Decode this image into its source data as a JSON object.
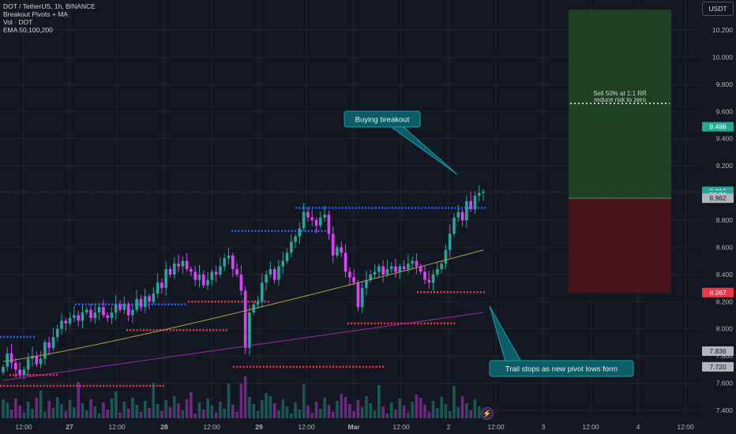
{
  "legend": {
    "symbol": "DOT / TetherUS, 1h, BINANCE",
    "indicators": [
      "Breakout Pivots + MA",
      "Vol · DOT",
      "EMA 50,100,200"
    ]
  },
  "currency_label": "USDT",
  "price_axis": {
    "ticks": [
      "7.400",
      "7.600",
      "7.800",
      "8.000",
      "8.200",
      "8.400",
      "8.600",
      "8.800",
      "9.000",
      "9.200",
      "9.400",
      "9.600",
      "9.800",
      "10.000",
      "10.200"
    ],
    "badges": [
      {
        "text": "9.488",
        "value": 9.488,
        "color": "#22ab94"
      },
      {
        "text": "9.012",
        "value": 9.012,
        "color": "#26a69a"
      },
      {
        "text": "58:29",
        "value": 8.985,
        "color": "#26a69a"
      },
      {
        "text": "8.962",
        "value": 8.962,
        "color": "#b2b5be"
      },
      {
        "text": "8.267",
        "value": 8.267,
        "color": "#f23645"
      },
      {
        "text": "7.836",
        "value": 7.836,
        "color": "#b2b5be"
      },
      {
        "text": "7.720",
        "value": 7.72,
        "color": "#b2b5be"
      }
    ]
  },
  "time_axis": [
    "12:00",
    "27",
    "12:00",
    "28",
    "12:00",
    "29",
    "12:00",
    "Mar",
    "12:00",
    "2",
    "12:00",
    "3",
    "12:00",
    "4",
    "12:00"
  ],
  "annotations": {
    "buy": "Buying breakout",
    "sell_line1": "Sell 50% at 1:1 RR",
    "sell_line2": "reduce risk to zero",
    "trail": "Trail stops as new pivot lows form"
  },
  "colors": {
    "bg": "#131722",
    "up": "#26a69a",
    "down": "#e040fb",
    "callout": "#0b5c66",
    "callout_border": "#12a2b0",
    "pivot_high": "#2962ff",
    "pivot_low": "#f23645",
    "ema50": "#b79a4a",
    "ema200": "#9c27b0"
  },
  "chart_data": {
    "type": "candlestick",
    "title": "DOT / TetherUS, 1h, BINANCE",
    "symbol": "DOTUSDT",
    "timeframe": "1h",
    "exchange": "BINANCE",
    "ylim": [
      7.35,
      10.35
    ],
    "x_labels": [
      "12:00",
      "27",
      "12:00",
      "28",
      "12:00",
      "29",
      "12:00",
      "Mar",
      "12:00",
      "2",
      "12:00",
      "3",
      "12:00",
      "4",
      "12:00"
    ],
    "closes": [
      7.72,
      7.82,
      7.75,
      7.7,
      7.66,
      7.7,
      7.78,
      7.8,
      7.74,
      7.78,
      7.9,
      7.86,
      7.94,
      8.0,
      8.06,
      8.04,
      8.08,
      8.1,
      8.06,
      8.12,
      8.14,
      8.08,
      8.12,
      8.16,
      8.1,
      8.08,
      8.12,
      8.18,
      8.14,
      8.18,
      8.1,
      8.14,
      8.22,
      8.16,
      8.24,
      8.2,
      8.26,
      8.34,
      8.3,
      8.44,
      8.4,
      8.48,
      8.46,
      8.5,
      8.44,
      8.42,
      8.36,
      8.4,
      8.32,
      8.36,
      8.42,
      8.4,
      8.46,
      8.52,
      8.54,
      8.44,
      8.4,
      8.28,
      7.86,
      8.12,
      8.18,
      8.2,
      8.34,
      8.4,
      8.44,
      8.36,
      8.46,
      8.5,
      8.56,
      8.64,
      8.68,
      8.74,
      8.86,
      8.82,
      8.8,
      8.76,
      8.82,
      8.84,
      8.7,
      8.54,
      8.6,
      8.56,
      8.42,
      8.38,
      8.34,
      8.16,
      8.3,
      8.36,
      8.4,
      8.42,
      8.46,
      8.4,
      8.44,
      8.46,
      8.42,
      8.46,
      8.44,
      8.48,
      8.5,
      8.46,
      8.42,
      8.36,
      8.34,
      8.4,
      8.44,
      8.48,
      8.58,
      8.7,
      8.82,
      8.86,
      8.8,
      8.94,
      8.88,
      8.98,
      9.0,
      9.01
    ],
    "ema50": {
      "start": 7.76,
      "end": 8.58
    },
    "ema200": {
      "start": 7.62,
      "end": 8.12
    },
    "pivots": [
      {
        "kind": "high",
        "price": 7.94,
        "x0": 0,
        "x1": 44
      },
      {
        "kind": "low",
        "price": 7.66,
        "x0": 12,
        "x1": 75
      },
      {
        "kind": "low",
        "price": 7.58,
        "x0": 0,
        "x1": 210
      },
      {
        "kind": "high",
        "price": 8.18,
        "x0": 95,
        "x1": 238
      },
      {
        "kind": "low",
        "price": 7.99,
        "x0": 160,
        "x1": 290
      },
      {
        "kind": "high",
        "price": 8.72,
        "x0": 293,
        "x1": 418
      },
      {
        "kind": "low",
        "price": 8.2,
        "x0": 238,
        "x1": 342
      },
      {
        "kind": "low",
        "price": 7.72,
        "x0": 295,
        "x1": 486
      },
      {
        "kind": "high",
        "price": 8.89,
        "x0": 374,
        "x1": 615
      },
      {
        "kind": "low",
        "price": 8.04,
        "x0": 440,
        "x1": 578
      },
      {
        "kind": "low",
        "price": 8.27,
        "x0": 528,
        "x1": 615
      }
    ],
    "position": {
      "entry": 8.962,
      "target": 10.35,
      "stop": 8.267,
      "partial_exit": 9.66
    },
    "last_price": 9.012
  }
}
